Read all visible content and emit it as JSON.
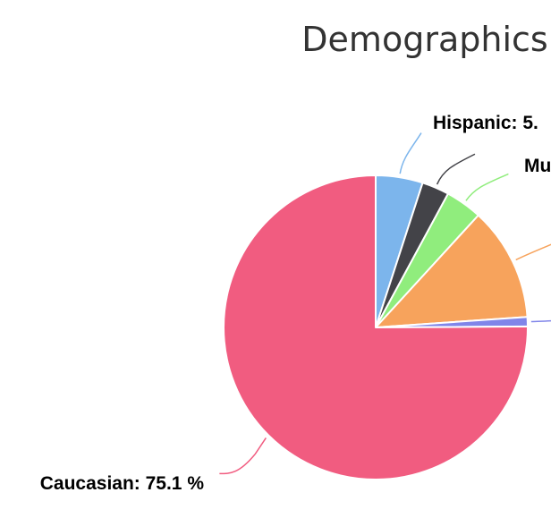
{
  "chart_data": {
    "type": "pie",
    "title": "Demographics",
    "slices": [
      {
        "label": "Hispanic",
        "value": 5.0,
        "color": "#7cb5ec",
        "data_label": "Hispanic: 5."
      },
      {
        "label": "Mu",
        "value": 2.9,
        "color": "#434348",
        "data_label": "Mu"
      },
      {
        "label": "",
        "value": 3.9,
        "color": "#90ed7d",
        "data_label": ""
      },
      {
        "label": "",
        "value": 12.1,
        "color": "#f7a35c",
        "data_label": ""
      },
      {
        "label": "",
        "value": 1.0,
        "color": "#8085e9",
        "data_label": ""
      },
      {
        "label": "Caucasian",
        "value": 75.1,
        "color": "#f15c80",
        "data_label": "Caucasian: 75.1 %"
      }
    ],
    "legend": "none"
  }
}
